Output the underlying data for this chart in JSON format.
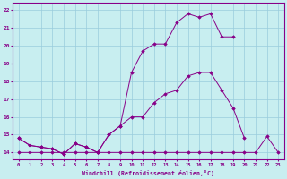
{
  "xlabel": "Windchill (Refroidissement éolien,°C)",
  "bg_color": "#c8eef0",
  "line_color": "#880088",
  "grid_color": "#99ccdd",
  "xmin": -0.5,
  "xmax": 23.5,
  "ymin": 13.6,
  "ymax": 22.4,
  "yticks": [
    14,
    15,
    16,
    17,
    18,
    19,
    20,
    21,
    22
  ],
  "xticks": [
    0,
    1,
    2,
    3,
    4,
    5,
    6,
    7,
    8,
    9,
    10,
    11,
    12,
    13,
    14,
    15,
    16,
    17,
    18,
    19,
    20,
    21,
    22,
    23
  ],
  "curve1_x": [
    0,
    1,
    2,
    3,
    4,
    5,
    6,
    7,
    8,
    9,
    10,
    11,
    12,
    13,
    14,
    15,
    16,
    17,
    18,
    19,
    20
  ],
  "curve1_y": [
    14.8,
    14.4,
    14.3,
    14.2,
    13.9,
    14.5,
    14.3,
    14.0,
    15.0,
    15.5,
    16.0,
    16.0,
    16.8,
    17.3,
    17.5,
    18.3,
    18.5,
    18.5,
    17.5,
    16.5,
    14.8
  ],
  "curve2_x": [
    0,
    1,
    2,
    3,
    4,
    5,
    6,
    7,
    8,
    9,
    10,
    11,
    12,
    13,
    14,
    15,
    16,
    17,
    18,
    19
  ],
  "curve2_y": [
    14.8,
    14.4,
    14.3,
    14.2,
    13.9,
    14.5,
    14.3,
    14.0,
    15.0,
    15.5,
    18.5,
    19.7,
    20.1,
    20.1,
    21.3,
    21.8,
    21.6,
    21.8,
    20.5,
    20.5
  ],
  "curve3_x": [
    0,
    1,
    2,
    3,
    4,
    5,
    6,
    7,
    8,
    9,
    10,
    11,
    12,
    13,
    14,
    15,
    16,
    17,
    18,
    19,
    20,
    21,
    22,
    23
  ],
  "curve3_y": [
    14.0,
    14.0,
    14.0,
    14.0,
    14.0,
    14.0,
    14.0,
    14.0,
    14.0,
    14.0,
    14.0,
    14.0,
    14.0,
    14.0,
    14.0,
    14.0,
    14.0,
    14.0,
    14.0,
    14.0,
    14.0,
    14.0,
    14.9,
    14.0
  ]
}
